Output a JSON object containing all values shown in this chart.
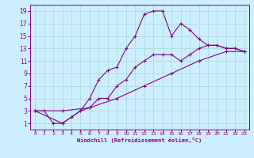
{
  "xlabel": "Windchill (Refroidissement éolien,°C)",
  "background_color": "#cceeff",
  "grid_color": "#aadddd",
  "line_color": "#880088",
  "xlim": [
    -0.5,
    23.5
  ],
  "ylim": [
    0,
    20
  ],
  "xticks": [
    0,
    1,
    2,
    3,
    4,
    5,
    6,
    7,
    8,
    9,
    10,
    11,
    12,
    13,
    14,
    15,
    16,
    17,
    18,
    19,
    20,
    21,
    22,
    23
  ],
  "yticks": [
    1,
    3,
    5,
    7,
    9,
    11,
    13,
    15,
    17,
    19
  ],
  "curve1_x": [
    0,
    1,
    2,
    3,
    4,
    5,
    6,
    7,
    8,
    9,
    10,
    11,
    12,
    13,
    14,
    15,
    16,
    17,
    18,
    19,
    20,
    21,
    22,
    23
  ],
  "curve1_y": [
    3,
    3,
    1,
    1,
    2,
    3,
    5,
    8,
    9.5,
    10,
    13,
    15,
    18.5,
    19,
    19,
    15,
    17,
    16,
    14.5,
    13.5,
    13.5,
    13,
    13,
    12.5
  ],
  "curve2_x": [
    0,
    3,
    4,
    5,
    6,
    7,
    8,
    9,
    10,
    11,
    12,
    13,
    14,
    15,
    16,
    17,
    18,
    19,
    20,
    21,
    22,
    23
  ],
  "curve2_y": [
    3,
    1,
    2,
    3,
    3.5,
    5,
    5,
    7,
    8,
    10,
    11,
    12,
    12,
    12,
    11,
    12,
    13,
    13.5,
    13.5,
    13,
    13,
    12.5
  ],
  "curve3_x": [
    0,
    3,
    6,
    9,
    12,
    15,
    18,
    21,
    23
  ],
  "curve3_y": [
    3,
    3,
    3.5,
    5,
    7,
    9,
    11,
    12.5,
    12.5
  ]
}
